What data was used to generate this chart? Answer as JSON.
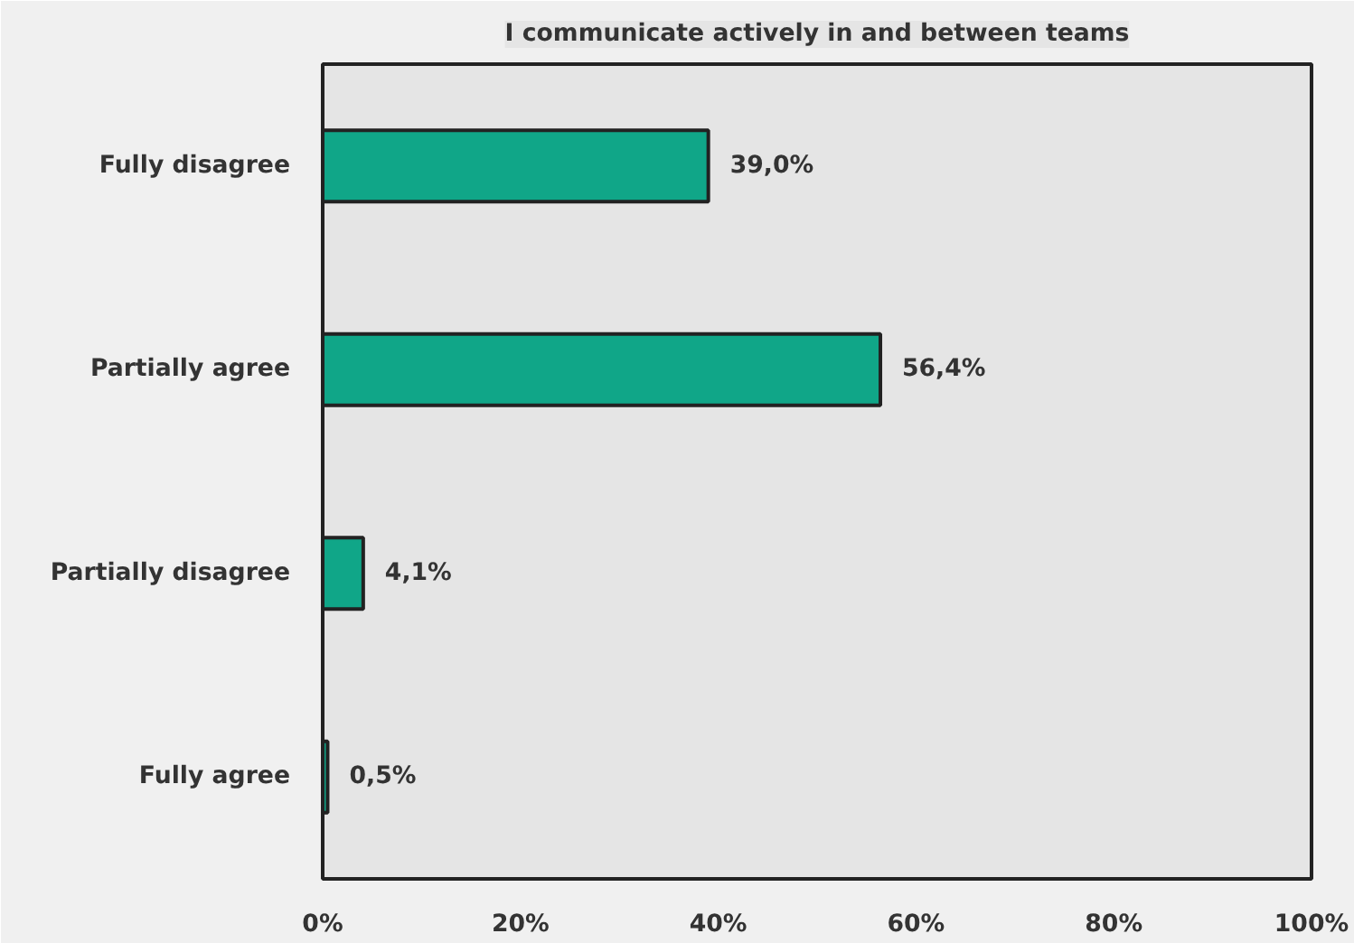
{
  "chart_data": {
    "type": "bar",
    "orientation": "horizontal",
    "title": "I communicate actively in and between teams",
    "categories": [
      "Fully disagree",
      "Partially agree",
      "Partially disagree",
      "Fully agree"
    ],
    "values": [
      39.0,
      56.4,
      4.1,
      0.5
    ],
    "value_labels": [
      "39,0%",
      "56,4%",
      "4,1%",
      "0,5%"
    ],
    "color": "#10a688",
    "xlim": [
      0,
      100
    ],
    "xticks": [
      {
        "value": 0,
        "label": "0%"
      },
      {
        "value": 20,
        "label": "20%"
      },
      {
        "value": 40,
        "label": "40%"
      },
      {
        "value": 60,
        "label": "60%"
      },
      {
        "value": 80,
        "label": "80%"
      },
      {
        "value": 100,
        "label": "100%"
      }
    ],
    "grid": false
  }
}
